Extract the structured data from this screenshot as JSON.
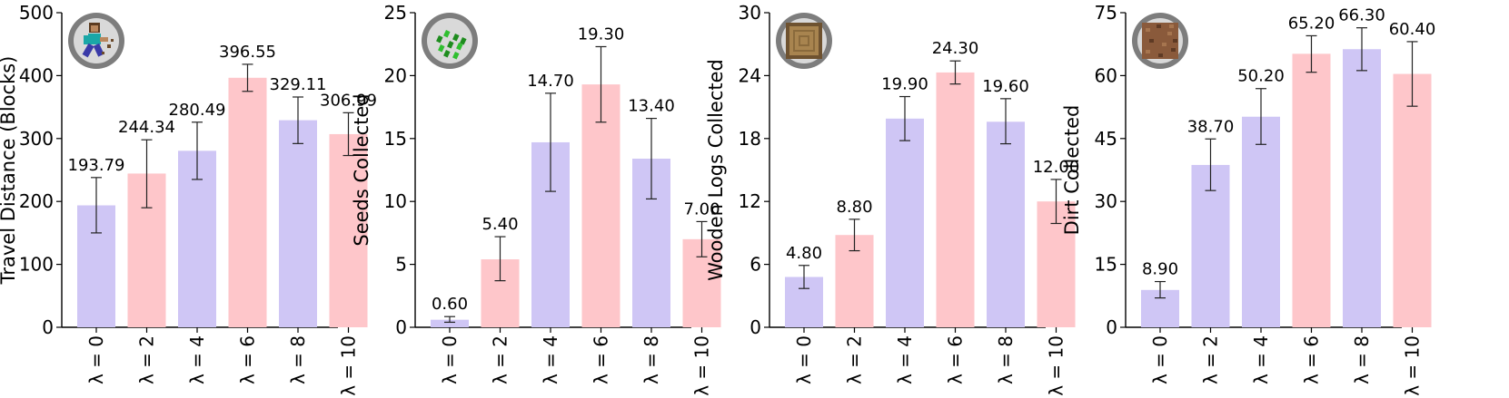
{
  "colors": {
    "purple": "#cfc6f5",
    "pink": "#fec6ca"
  },
  "chart_data": [
    {
      "type": "bar",
      "icon": "steve-running-icon",
      "categories": [
        "λ = 0",
        "λ = 2",
        "λ = 4",
        "λ = 6",
        "λ = 8",
        "λ = 10"
      ],
      "values": [
        193.79,
        244.34,
        280.49,
        396.55,
        329.11,
        306.99
      ],
      "value_labels": [
        "193.79",
        "244.34",
        "280.49",
        "396.55",
        "329.11",
        "306.99"
      ],
      "error_low": [
        150,
        190,
        235,
        375,
        292,
        273
      ],
      "error_high": [
        238,
        298,
        326,
        418,
        366,
        341
      ],
      "bar_colors": [
        "purple",
        "pink",
        "purple",
        "pink",
        "purple",
        "pink"
      ],
      "ylabel": "Travel Distance (Blocks)",
      "ylim": [
        0,
        500
      ],
      "yticks": [
        0,
        100,
        200,
        300,
        400,
        500
      ],
      "ytick_labels": [
        "0",
        "100",
        "200",
        "300",
        "400",
        "500"
      ],
      "grid": false
    },
    {
      "type": "bar",
      "icon": "seeds-icon",
      "categories": [
        "λ = 0",
        "λ = 2",
        "λ = 4",
        "λ = 6",
        "λ = 8",
        "λ = 10"
      ],
      "values": [
        0.6,
        5.4,
        14.7,
        19.3,
        13.4,
        7.0
      ],
      "value_labels": [
        "0.60",
        "5.40",
        "14.70",
        "19.30",
        "13.40",
        "7.00"
      ],
      "error_low": [
        0.4,
        3.7,
        10.8,
        16.3,
        10.2,
        5.6
      ],
      "error_high": [
        0.85,
        7.2,
        18.6,
        22.3,
        16.6,
        8.4
      ],
      "bar_colors": [
        "purple",
        "pink",
        "purple",
        "pink",
        "purple",
        "pink"
      ],
      "ylabel": "Seeds Collected",
      "ylim": [
        0,
        25
      ],
      "yticks": [
        0,
        5,
        10,
        15,
        20,
        25
      ],
      "ytick_labels": [
        "0",
        "5",
        "10",
        "15",
        "20",
        "25"
      ],
      "grid": false
    },
    {
      "type": "bar",
      "icon": "oak-log-icon",
      "categories": [
        "λ = 0",
        "λ = 2",
        "λ = 4",
        "λ = 6",
        "λ = 8",
        "λ = 10"
      ],
      "values": [
        4.8,
        8.8,
        19.9,
        24.3,
        19.6,
        12.0
      ],
      "value_labels": [
        "4.80",
        "8.80",
        "19.90",
        "24.30",
        "19.60",
        "12.00"
      ],
      "error_low": [
        3.7,
        7.3,
        17.8,
        23.2,
        17.5,
        9.9
      ],
      "error_high": [
        5.9,
        10.3,
        22.0,
        25.4,
        21.8,
        14.1
      ],
      "bar_colors": [
        "purple",
        "pink",
        "purple",
        "pink",
        "purple",
        "pink"
      ],
      "ylabel": "Wooden Logs Collected",
      "ylim": [
        0,
        30
      ],
      "yticks": [
        0,
        6,
        12,
        18,
        24,
        30
      ],
      "ytick_labels": [
        "0",
        "6",
        "12",
        "18",
        "24",
        "30"
      ],
      "grid": false
    },
    {
      "type": "bar",
      "icon": "dirt-block-icon",
      "categories": [
        "λ = 0",
        "λ = 2",
        "λ = 4",
        "λ = 6",
        "λ = 8",
        "λ = 10"
      ],
      "values": [
        8.9,
        38.7,
        50.2,
        65.2,
        66.3,
        60.4
      ],
      "value_labels": [
        "8.90",
        "38.70",
        "50.20",
        "65.20",
        "66.30",
        "60.40"
      ],
      "error_low": [
        7.0,
        32.6,
        43.6,
        60.8,
        61.2,
        52.7
      ],
      "error_high": [
        10.9,
        44.9,
        56.9,
        69.5,
        71.4,
        68.1
      ],
      "bar_colors": [
        "purple",
        "purple",
        "purple",
        "pink",
        "purple",
        "pink"
      ],
      "ylabel": "Dirt Collected",
      "ylim": [
        0,
        75
      ],
      "yticks": [
        0,
        15,
        30,
        45,
        60,
        75
      ],
      "ytick_labels": [
        "0",
        "15",
        "30",
        "45",
        "60",
        "75"
      ],
      "grid": false
    }
  ]
}
